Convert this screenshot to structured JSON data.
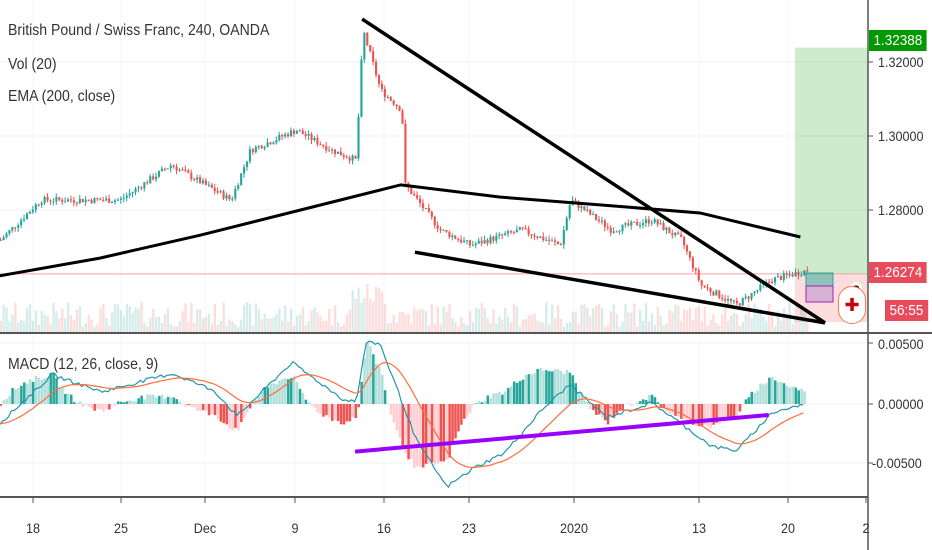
{
  "header": {
    "title": "British Pound / Swiss Franc, 240, OANDA",
    "vol": "Vol (20)",
    "ema": "EMA (200, close)",
    "macd": "MACD (12, 26, close, 9)"
  },
  "price_axis": {
    "ticks": [
      "1.32000",
      "1.30000",
      "1.28000"
    ],
    "target_label": "1.32388",
    "current_label": "1.26274",
    "countdown": "56:55",
    "badge": "3"
  },
  "macd_axis": {
    "ticks": [
      "0.00500",
      "0.00000",
      "-0.00500"
    ]
  },
  "time_axis": {
    "labels": [
      "18",
      "25",
      "Dec",
      "9",
      "16",
      "23",
      "2020",
      "13",
      "20",
      "2"
    ]
  },
  "colors": {
    "up": "#26a69a",
    "down": "#ef5350",
    "target": "#009900",
    "current": "#e84b5c",
    "purple": "#9900ff"
  },
  "chart_data": {
    "type": "candlestick",
    "x_unit": "trading days since Nov 18",
    "price_path": [
      [
        -1.9,
        1.2719
      ],
      [
        0.4,
        1.2827
      ],
      [
        4.9,
        1.2827
      ],
      [
        7.8,
        1.2922
      ],
      [
        11.2,
        1.2827
      ],
      [
        12.3,
        1.2962
      ],
      [
        14.9,
        1.3016
      ],
      [
        16.9,
        1.2962
      ],
      [
        18.3,
        1.2935
      ],
      [
        18.7,
        1.3286
      ],
      [
        19.7,
        1.3124
      ],
      [
        20.9,
        1.307
      ],
      [
        21.1,
        1.2868
      ],
      [
        23.1,
        1.2746
      ],
      [
        24.8,
        1.2705
      ],
      [
        27.7,
        1.2746
      ],
      [
        29.9,
        1.2705
      ],
      [
        30.5,
        1.2827
      ],
      [
        32.8,
        1.2746
      ],
      [
        35.1,
        1.2773
      ],
      [
        36.8,
        1.2719
      ],
      [
        37.9,
        1.2597
      ],
      [
        39.9,
        1.2543
      ],
      [
        41.9,
        1.2611
      ],
      [
        44.0,
        1.2638
      ]
    ],
    "ema200": [
      [
        -1.9,
        1.2622
      ],
      [
        3.8,
        1.267
      ],
      [
        9.5,
        1.2732
      ],
      [
        15.2,
        1.28
      ],
      [
        20.9,
        1.2868
      ],
      [
        26.5,
        1.2835
      ],
      [
        32.2,
        1.2814
      ],
      [
        37.9,
        1.2792
      ],
      [
        43.6,
        1.2727
      ]
    ],
    "macd": [
      [
        -1.9,
        -0.0016
      ],
      [
        1.1,
        0.0024
      ],
      [
        3.9,
        0.001
      ],
      [
        7.9,
        0.0025
      ],
      [
        10.3,
        0.0011
      ],
      [
        11.6,
        -0.001
      ],
      [
        14.7,
        0.0034
      ],
      [
        17.7,
        0.0003
      ],
      [
        18.4,
        0.0003
      ],
      [
        18.9,
        0.005
      ],
      [
        19.7,
        0.005
      ],
      [
        21.8,
        -0.003
      ],
      [
        23.5,
        -0.0068
      ],
      [
        25.1,
        -0.0052
      ],
      [
        26.8,
        -0.004
      ],
      [
        28.9,
        -0.0005
      ],
      [
        30.5,
        0.0016
      ],
      [
        32.6,
        -0.0011
      ],
      [
        35.2,
        0.0001
      ],
      [
        38.6,
        -0.0035
      ],
      [
        40,
        -0.0038
      ],
      [
        42,
        -0.0007
      ],
      [
        43.9,
        0.0
      ]
    ],
    "trendlines": [
      [
        [
          18.7,
          1.3316
        ],
        [
          45,
          1.2495
        ]
      ],
      [
        [
          21.7,
          1.2686
        ],
        [
          45,
          1.2495
        ]
      ]
    ],
    "macd_trendline": [
      [
        18.3,
        -0.0039
      ],
      [
        41.8,
        -0.0009
      ]
    ],
    "target": 1.32388,
    "current": 1.26274
  }
}
